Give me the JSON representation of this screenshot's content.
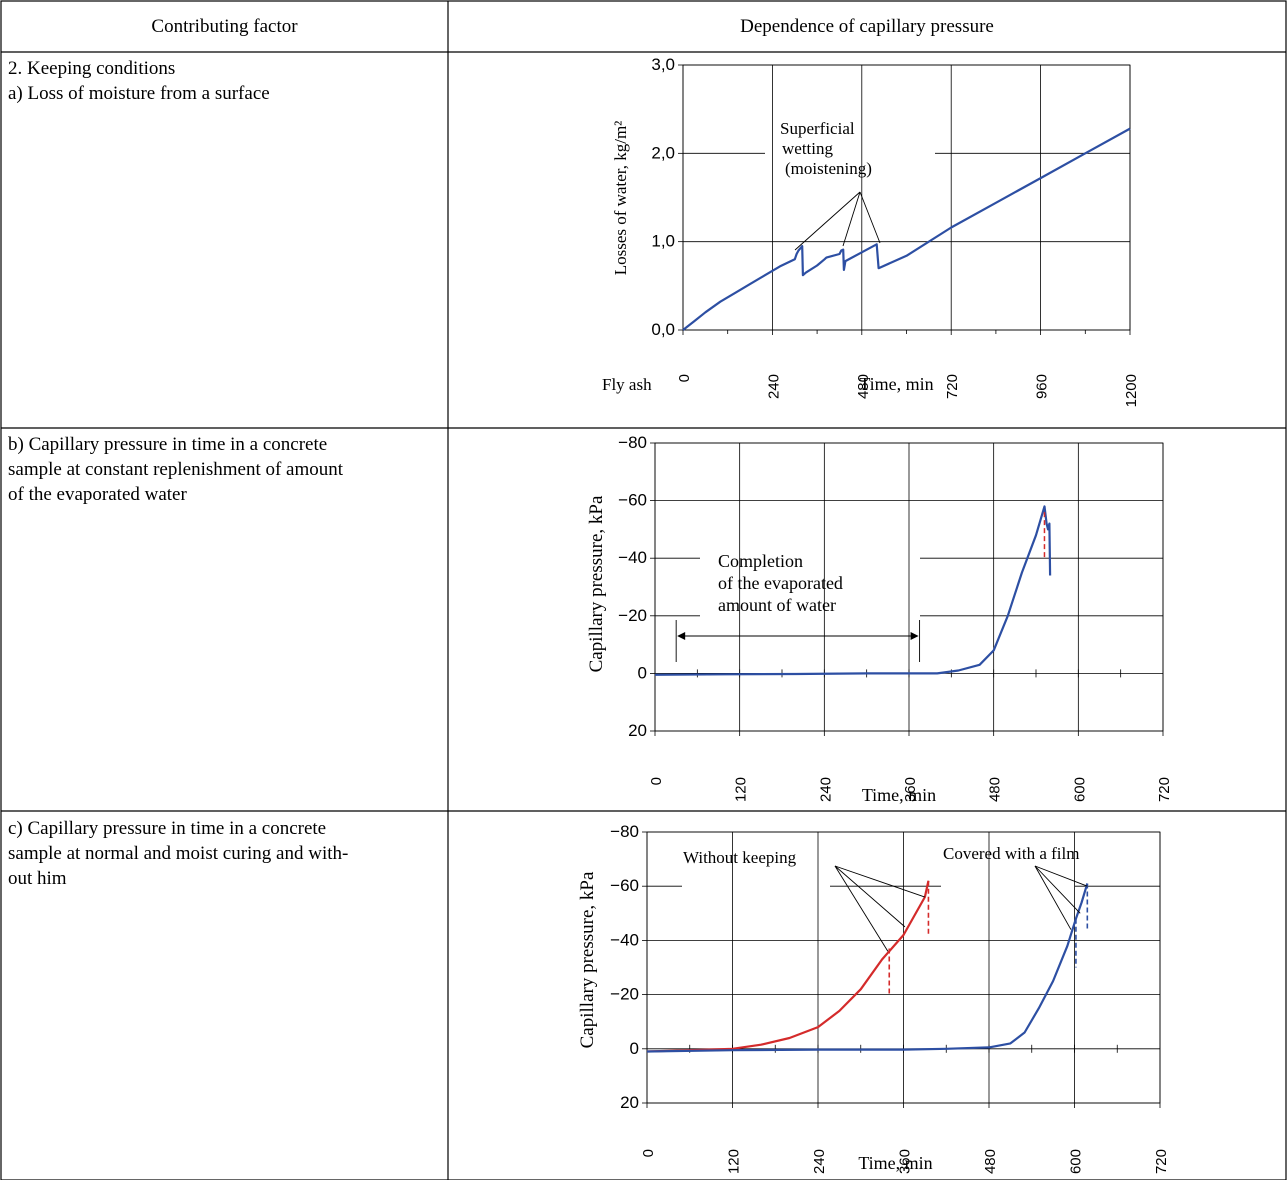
{
  "table": {
    "header": {
      "col1": "Contributing factor",
      "col2": "Dependence of capillary pressure"
    },
    "rows": [
      {
        "factor_line1": "2. Keeping conditions",
        "factor_line2": "a) Loss of moisture from a surface"
      },
      {
        "factor_line1": "b) Capillary pressure in time in a concrete",
        "factor_line2": "sample at constant replenishment of amount",
        "factor_line3": "of the evaporated water"
      },
      {
        "factor_line1": "c) Capillary pressure in time in a concrete",
        "factor_line2": "sample at normal and moist curing and with-",
        "factor_line3": "out him"
      }
    ]
  },
  "colors": {
    "blue": "#2d4fa3",
    "red": "#d42b2b",
    "grid": "#000000"
  },
  "chart_data": [
    {
      "type": "line",
      "title": "",
      "xlabel": "Time, min",
      "ylabel": "Losses of water, kg/m²",
      "corner_label": "Fly ash",
      "xlim": [
        0,
        1200
      ],
      "ylim": [
        0,
        3
      ],
      "x_ticks": [
        "0",
        "240",
        "480",
        "720",
        "960",
        "1200"
      ],
      "y_ticks": [
        "0,0",
        "1,0",
        "2,0",
        "3,0"
      ],
      "annotation": [
        "Superficial",
        "wetting",
        "(moistening)"
      ],
      "series": [
        {
          "color": "#2d4fa3",
          "points": [
            [
              0,
              0
            ],
            [
              30,
              0.1
            ],
            [
              60,
              0.2
            ],
            [
              100,
              0.32
            ],
            [
              140,
              0.42
            ],
            [
              180,
              0.52
            ],
            [
              220,
              0.62
            ],
            [
              260,
              0.72
            ],
            [
              300,
              0.8
            ],
            [
              305,
              0.86
            ],
            [
              310,
              0.9
            ],
            [
              320,
              0.95
            ],
            [
              322,
              0.62
            ],
            [
              330,
              0.65
            ],
            [
              360,
              0.73
            ],
            [
              380,
              0.8
            ],
            [
              385,
              0.82
            ],
            [
              420,
              0.86
            ],
            [
              425,
              0.9
            ],
            [
              430,
              0.91
            ],
            [
              432,
              0.68
            ],
            [
              436,
              0.78
            ],
            [
              480,
              0.88
            ],
            [
              520,
              0.97
            ],
            [
              525,
              0.7
            ],
            [
              600,
              0.84
            ],
            [
              720,
              1.16
            ],
            [
              840,
              1.44
            ],
            [
              960,
              1.72
            ],
            [
              1080,
              2.0
            ],
            [
              1200,
              2.28
            ]
          ]
        }
      ]
    },
    {
      "type": "line",
      "title": "",
      "xlabel": "Time, min",
      "ylabel": "Capillary pressure, kPa",
      "xlim": [
        0,
        720
      ],
      "ylim": [
        20,
        -80
      ],
      "x_ticks": [
        "0",
        "120",
        "240",
        "360",
        "480",
        "600",
        "720"
      ],
      "y_ticks": [
        "20",
        "0",
        "−20",
        "−40",
        "−60",
        "−80"
      ],
      "annotation": [
        "Completion",
        "of the evaporated",
        "amount of water"
      ],
      "arrow_range": [
        30,
        375
      ],
      "series": [
        {
          "color": "#2d4fa3",
          "points": [
            [
              0,
              0.5
            ],
            [
              100,
              0.3
            ],
            [
              200,
              0.2
            ],
            [
              300,
              0
            ],
            [
              400,
              0
            ],
            [
              430,
              -1
            ],
            [
              460,
              -3
            ],
            [
              480,
              -8
            ],
            [
              500,
              -20
            ],
            [
              520,
              -35
            ],
            [
              540,
              -48
            ],
            [
              552,
              -58
            ],
            [
              555,
              -52
            ],
            [
              557,
              -50
            ],
            [
              559,
              -52
            ],
            [
              560,
              -34
            ]
          ]
        }
      ]
    },
    {
      "type": "line",
      "title": "",
      "xlabel": "Time, min",
      "ylabel": "Capillary pressure, kPa",
      "xlim": [
        0,
        720
      ],
      "ylim": [
        20,
        -80
      ],
      "x_ticks": [
        "0",
        "120",
        "240",
        "360",
        "480",
        "600",
        "720"
      ],
      "y_ticks": [
        "20",
        "0",
        "−20",
        "−40",
        "−60",
        "−80"
      ],
      "annotations": [
        "Without keeping",
        "Covered with a film"
      ],
      "series": [
        {
          "color": "#d42b2b",
          "points": [
            [
              0,
              1
            ],
            [
              60,
              0.5
            ],
            [
              120,
              0
            ],
            [
              160,
              -1.5
            ],
            [
              200,
              -4
            ],
            [
              240,
              -8
            ],
            [
              270,
              -14
            ],
            [
              300,
              -22
            ],
            [
              330,
              -33
            ],
            [
              360,
              -42
            ],
            [
              390,
              -56
            ],
            [
              395,
              -62
            ]
          ]
        },
        {
          "color": "#d42b2b",
          "dashed": true,
          "points": [
            [
              340,
              -37
            ],
            [
              340,
              -20
            ],
            [
              395,
              -62
            ],
            [
              395,
              -42
            ]
          ]
        },
        {
          "color": "#2d4fa3",
          "points": [
            [
              0,
              1
            ],
            [
              120,
              0.5
            ],
            [
              240,
              0.3
            ],
            [
              360,
              0.3
            ],
            [
              420,
              0
            ],
            [
              480,
              -0.5
            ],
            [
              510,
              -2
            ],
            [
              530,
              -6
            ],
            [
              550,
              -15
            ],
            [
              570,
              -25
            ],
            [
              590,
              -38
            ],
            [
              602,
              -48
            ],
            [
              610,
              -54
            ],
            [
              618,
              -61
            ]
          ]
        },
        {
          "color": "#2d4fa3",
          "dashed": true,
          "points": [
            [
              602,
              -48
            ],
            [
              602,
              -30
            ],
            [
              618,
              -61
            ],
            [
              618,
              -44
            ]
          ]
        }
      ]
    }
  ]
}
